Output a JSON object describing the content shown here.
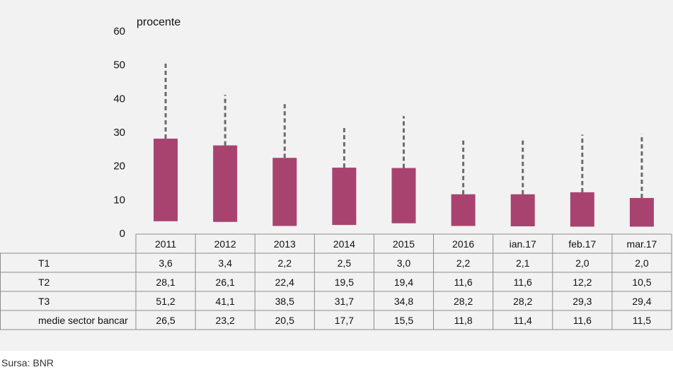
{
  "chart_data": {
    "type": "bar",
    "ylabel": "procente",
    "ylim": [
      0,
      60
    ],
    "yticks": [
      0,
      10,
      20,
      30,
      40,
      50,
      60
    ],
    "categories": [
      "2011",
      "2012",
      "2013",
      "2014",
      "2015",
      "2016",
      "ian.17",
      "feb.17",
      "mar.17"
    ],
    "series": [
      {
        "name": "T1",
        "values": [
          3.6,
          3.4,
          2.2,
          2.5,
          3.0,
          2.2,
          2.1,
          2.0,
          2.0
        ]
      },
      {
        "name": "T2",
        "values": [
          28.1,
          26.1,
          22.4,
          19.5,
          19.4,
          11.6,
          11.6,
          12.2,
          10.5
        ]
      },
      {
        "name": "T3",
        "values": [
          51.2,
          41.1,
          38.5,
          31.7,
          34.8,
          28.2,
          28.2,
          29.3,
          29.4
        ]
      },
      {
        "name": "medie sector bancar",
        "values": [
          26.5,
          23.2,
          20.5,
          17.7,
          15.5,
          11.8,
          11.4,
          11.6,
          11.5
        ]
      }
    ],
    "table": {
      "rows": [
        {
          "label": "T1",
          "values": [
            "3,6",
            "3,4",
            "2,2",
            "2,5",
            "3,0",
            "2,2",
            "2,1",
            "2,0",
            "2,0"
          ]
        },
        {
          "label": "T2",
          "values": [
            "28,1",
            "26,1",
            "22,4",
            "19,5",
            "19,4",
            "11,6",
            "11,6",
            "12,2",
            "10,5"
          ]
        },
        {
          "label": "T3",
          "values": [
            "51,2",
            "41,1",
            "38,5",
            "31,7",
            "34,8",
            "28,2",
            "28,2",
            "29,3",
            "29,4"
          ]
        },
        {
          "label": "medie sector bancar",
          "values": [
            "26,5",
            "23,2",
            "20,5",
            "17,7",
            "15,5",
            "11,8",
            "11,4",
            "11,6",
            "11,5"
          ]
        }
      ]
    },
    "colors": {
      "bar": "#a8436f",
      "whisker": "#6b6b6b",
      "panel": "#f2f2f2"
    },
    "grid": false
  },
  "source": "Sursa: BNR"
}
